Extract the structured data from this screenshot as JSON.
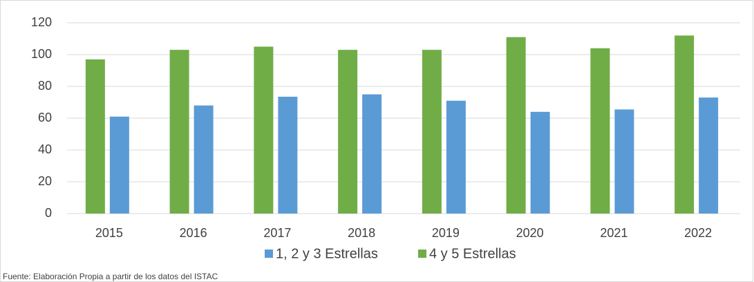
{
  "chart_data": {
    "type": "bar",
    "categories": [
      "2015",
      "2016",
      "2017",
      "2018",
      "2019",
      "2020",
      "2021",
      "2022"
    ],
    "series": [
      {
        "name": "1, 2 y 3 Estrellas",
        "color": "#5b9bd5",
        "values": [
          61,
          68,
          73.5,
          75,
          71,
          64,
          65.5,
          73
        ]
      },
      {
        "name": "4 y 5 Estrellas",
        "color": "#70ad47",
        "values": [
          97,
          103,
          105,
          103,
          103,
          111,
          104,
          112
        ]
      }
    ],
    "ylim": [
      0,
      120
    ],
    "yticks": [
      0,
      20,
      40,
      60,
      80,
      100,
      120
    ],
    "grid": true,
    "legend": "bottom",
    "source": "Fuente: Elaboración Propia a partir de los datos  del ISTAC"
  }
}
